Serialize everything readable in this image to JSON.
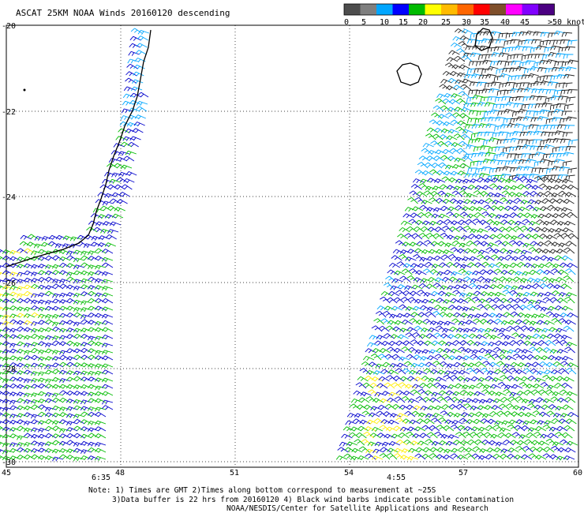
{
  "title": "ASCAT 25KM NOAA Winds 20160120 descending",
  "legend": {
    "colors": [
      "#4d4d4d",
      "#7f7f7f",
      "#00a6ff",
      "#0000ff",
      "#00bb00",
      "#ffff00",
      "#ffbb00",
      "#ff6600",
      "#ff0000",
      "#7f4f2a",
      "#ff00ff",
      "#8000ff",
      "#4b0082"
    ],
    "labels": [
      "0",
      "5",
      "10",
      "15",
      "20",
      "25",
      "30",
      "35",
      "40",
      "45",
      ">50 knots"
    ]
  },
  "map": {
    "lat_ticks": [
      "-20",
      "-22",
      "-24",
      "-26",
      "-28",
      "-30"
    ],
    "lon_ticks": [
      "45",
      "48",
      "51",
      "54",
      "57",
      "60"
    ],
    "time_labels": [
      "6:35",
      "4:55"
    ],
    "time_color": "#6a1b9a"
  },
  "notes": {
    "line1": "Note: 1) Times are GMT 2)Times along bottom correspond to measurement at ~25S",
    "line2": "3)Data buffer is 22 hrs from 20160120 4) Black wind barbs indicate possible contamination",
    "line3": "NOAA/NESDIS/Center for Satellite Applications and Research"
  }
}
